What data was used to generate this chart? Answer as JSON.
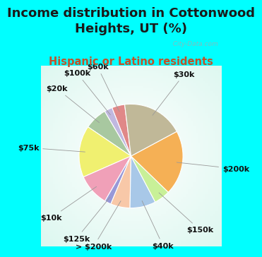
{
  "title": "Income distribution in Cottonwood\nHeights, UT (%)",
  "subtitle": "Hispanic or Latino residents",
  "background_color": "#00ffff",
  "title_color": "#1a1a1a",
  "subtitle_color": "#c0522a",
  "watermark": "  City-Data.com",
  "slices": [
    {
      "label": "$60k",
      "value": 4.0,
      "color": "#e08888"
    },
    {
      "label": "$100k",
      "value": 2.5,
      "color": "#c0b8e0"
    },
    {
      "label": "$20k",
      "value": 7.0,
      "color": "#a8c8a0"
    },
    {
      "label": "$75k",
      "value": 16.0,
      "color": "#f0f070"
    },
    {
      "label": "$10k",
      "value": 10.0,
      "color": "#f0a0b8"
    },
    {
      "label": "$125k",
      "value": 2.0,
      "color": "#9898d8"
    },
    {
      "label": "> $200k",
      "value": 6.0,
      "color": "#f8c8a8"
    },
    {
      "label": "$40k",
      "value": 8.0,
      "color": "#a8c8e8"
    },
    {
      "label": "$150k",
      "value": 5.0,
      "color": "#c8f098"
    },
    {
      "label": "$200k",
      "value": 20.0,
      "color": "#f5b055"
    },
    {
      "label": "$30k",
      "value": 19.0,
      "color": "#c0b898"
    }
  ],
  "label_fontsize": 8,
  "title_fontsize": 13,
  "subtitle_fontsize": 10.5
}
